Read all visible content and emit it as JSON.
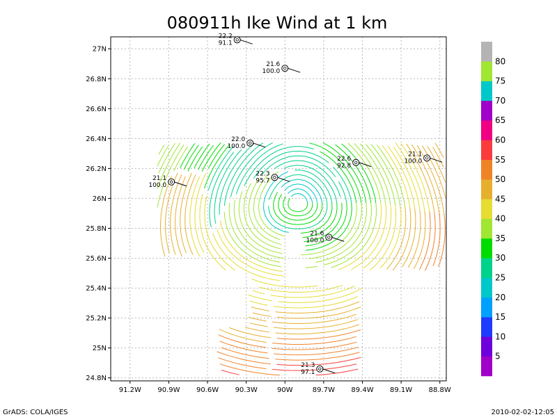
{
  "chart_data": {
    "type": "streamline",
    "title": "080911h Ike Wind at 1 km",
    "footer_left": "GrADS: COLA/IGES",
    "footer_right": "2010-02-02-12:05",
    "xlim": [
      -91.35,
      -88.75
    ],
    "ylim": [
      24.78,
      27.08
    ],
    "x_ticks": [
      {
        "value": -91.2,
        "label": "91.2W"
      },
      {
        "value": -90.9,
        "label": "90.9W"
      },
      {
        "value": -90.6,
        "label": "90.6W"
      },
      {
        "value": -90.3,
        "label": "90.3W"
      },
      {
        "value": -90.0,
        "label": "90W"
      },
      {
        "value": -89.7,
        "label": "89.7W"
      },
      {
        "value": -89.4,
        "label": "89.4W"
      },
      {
        "value": -89.1,
        "label": "89.1W"
      },
      {
        "value": -88.8,
        "label": "88.8W"
      }
    ],
    "y_ticks": [
      {
        "value": 24.8,
        "label": "24.8N"
      },
      {
        "value": 25.0,
        "label": "25N"
      },
      {
        "value": 25.2,
        "label": "25.2N"
      },
      {
        "value": 25.4,
        "label": "25.4N"
      },
      {
        "value": 25.6,
        "label": "25.6N"
      },
      {
        "value": 25.8,
        "label": "25.8N"
      },
      {
        "value": 26.0,
        "label": "26N"
      },
      {
        "value": 26.2,
        "label": "26.2N"
      },
      {
        "value": 26.4,
        "label": "26.4N"
      },
      {
        "value": 26.6,
        "label": "26.6N"
      },
      {
        "value": 26.8,
        "label": "26.8N"
      },
      {
        "value": 27.0,
        "label": "27N"
      }
    ],
    "grid": true,
    "vortex_center": {
      "lon": -89.9,
      "lat": 25.97
    },
    "colorbar": {
      "levels": [
        5,
        10,
        15,
        20,
        25,
        30,
        35,
        40,
        45,
        50,
        55,
        60,
        65,
        70,
        75,
        80
      ],
      "colors": [
        "#a000c8",
        "#6e00dc",
        "#1e3cff",
        "#00a0ff",
        "#00c8c8",
        "#00d28c",
        "#00dc00",
        "#a0e632",
        "#e6dc32",
        "#e6af2d",
        "#f08228",
        "#fa3c3c",
        "#f00082",
        "#a000c8",
        "#00c8c8",
        "#a0e632",
        "#b4b4b4"
      ]
    },
    "observations": [
      {
        "lon": -90.37,
        "lat": 27.06,
        "temp": "22.2",
        "pressure": "91.1"
      },
      {
        "lon": -90.0,
        "lat": 26.87,
        "temp": "21.6",
        "pressure": "100.0"
      },
      {
        "lon": -90.27,
        "lat": 26.37,
        "temp": "22.0",
        "pressure": "100.0"
      },
      {
        "lon": -90.08,
        "lat": 26.14,
        "temp": "22.3",
        "pressure": "95.7"
      },
      {
        "lon": -89.45,
        "lat": 26.24,
        "temp": "22.6",
        "pressure": "92.8"
      },
      {
        "lon": -88.9,
        "lat": 26.27,
        "temp": "21.1",
        "pressure": "100.0"
      },
      {
        "lon": -90.88,
        "lat": 26.11,
        "temp": "21.1",
        "pressure": "100.0"
      },
      {
        "lon": -89.66,
        "lat": 25.74,
        "temp": "21.6",
        "pressure": "100.0"
      },
      {
        "lon": -89.73,
        "lat": 24.86,
        "temp": "21.3",
        "pressure": "97.1"
      }
    ]
  }
}
